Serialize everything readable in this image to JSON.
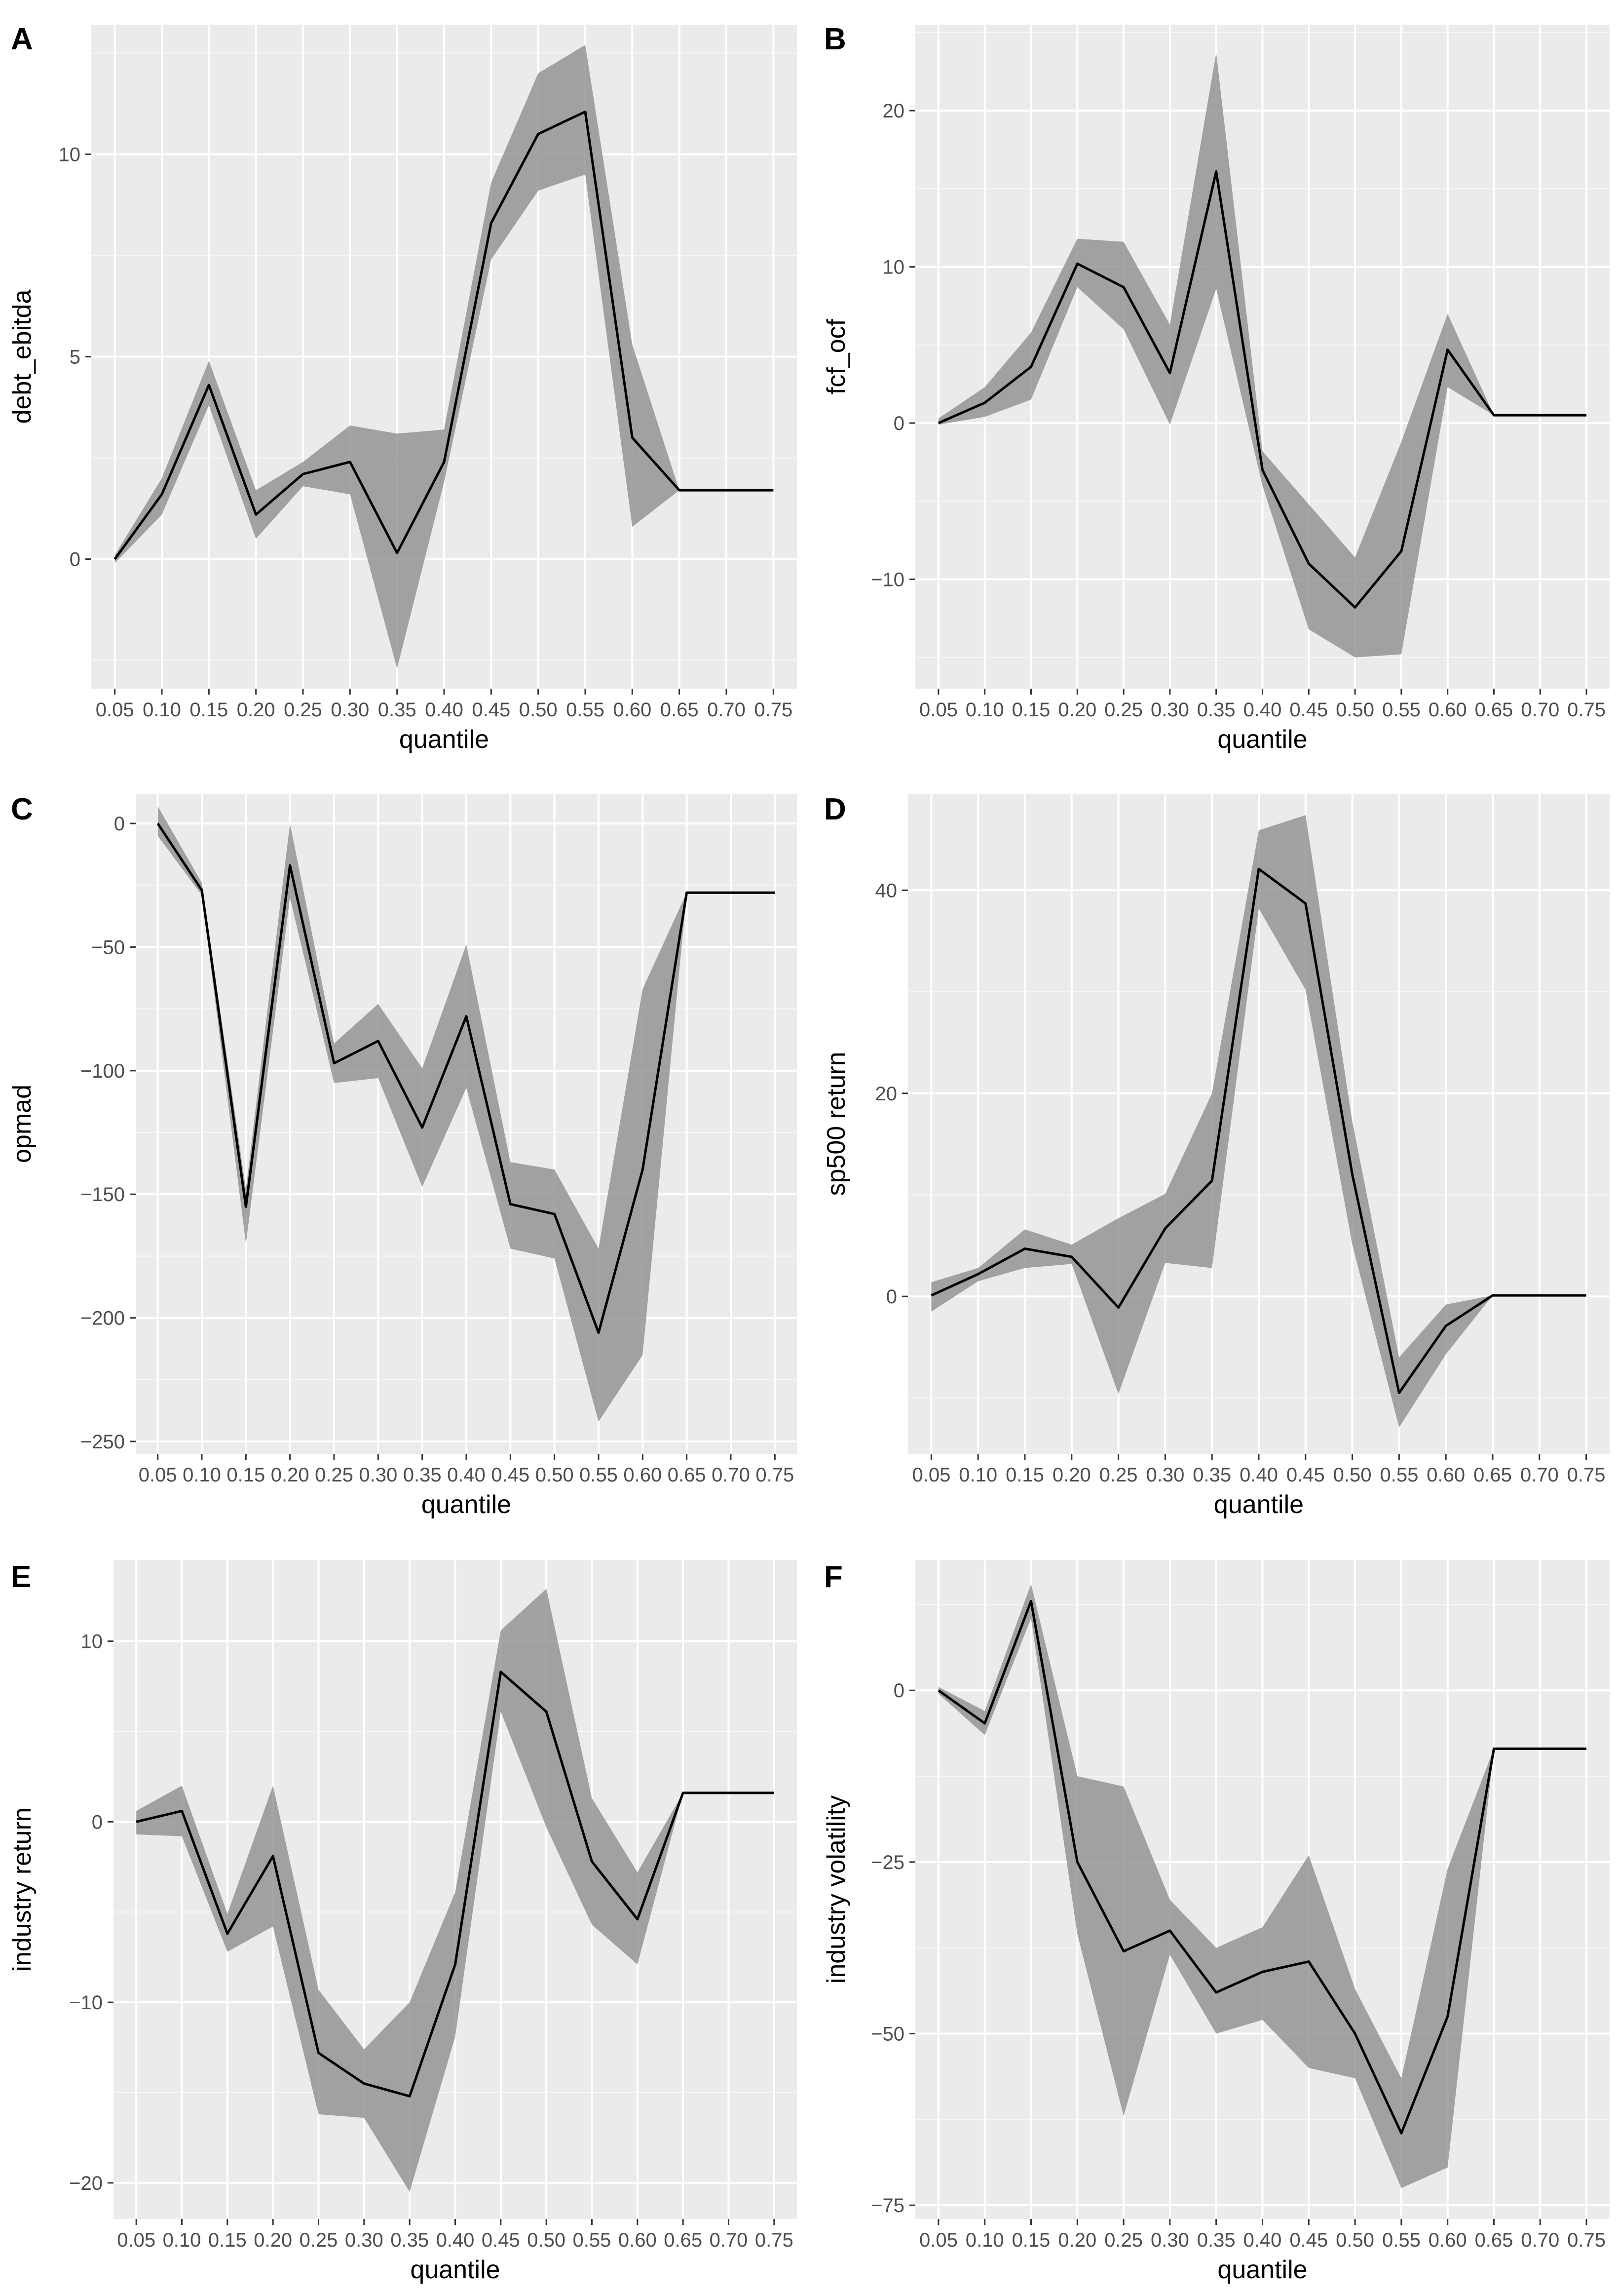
{
  "figure": {
    "panel_count": 6
  },
  "chart_data": [
    {
      "panel": "A",
      "type": "line",
      "xlabel": "quantile",
      "ylabel": "debt_ebitda",
      "x": [
        "0.05",
        "0.10",
        "0.15",
        "0.20",
        "0.25",
        "0.30",
        "0.35",
        "0.40",
        "0.45",
        "0.50",
        "0.55",
        "0.60",
        "0.65",
        "0.70",
        "0.75"
      ],
      "series": [
        {
          "name": "estimate",
          "values": [
            0.0,
            1.6,
            4.3,
            1.1,
            2.1,
            2.4,
            0.15,
            2.4,
            8.3,
            10.5,
            11.05,
            3.0,
            1.7,
            1.7,
            1.7
          ],
          "lower": [
            -0.1,
            1.1,
            3.8,
            0.5,
            1.8,
            1.6,
            -2.7,
            1.9,
            7.4,
            9.1,
            9.5,
            0.8,
            1.7,
            1.7,
            1.7
          ],
          "upper": [
            0.1,
            2.0,
            4.9,
            1.7,
            2.4,
            3.3,
            3.1,
            3.2,
            9.3,
            12.0,
            12.7,
            5.3,
            1.7,
            1.7,
            1.7
          ]
        }
      ],
      "ylim": [
        -3.2,
        13.2
      ],
      "yticks": [
        0,
        5,
        10
      ],
      "ytick_labels": [
        "0",
        "5",
        "10"
      ]
    },
    {
      "panel": "B",
      "type": "line",
      "xlabel": "quantile",
      "ylabel": "fcf_ocf",
      "x": [
        "0.05",
        "0.10",
        "0.15",
        "0.20",
        "0.25",
        "0.30",
        "0.35",
        "0.40",
        "0.45",
        "0.50",
        "0.55",
        "0.60",
        "0.65",
        "0.70",
        "0.75"
      ],
      "series": [
        {
          "name": "estimate",
          "values": [
            0.0,
            1.3,
            3.6,
            10.2,
            8.7,
            3.2,
            16.1,
            -3.0,
            -9.0,
            -11.8,
            -8.2,
            4.7,
            0.5,
            0.5,
            0.5
          ],
          "lower": [
            -0.1,
            0.4,
            1.5,
            8.7,
            6.0,
            -0.1,
            8.6,
            -4.0,
            -13.2,
            -15.0,
            -14.8,
            2.3,
            0.5,
            0.5,
            0.5
          ],
          "upper": [
            0.3,
            2.3,
            5.8,
            11.8,
            11.6,
            6.3,
            23.7,
            -1.8,
            -5.2,
            -8.6,
            -1.2,
            7.0,
            0.5,
            0.5,
            0.5
          ]
        }
      ],
      "ylim": [
        -17.0,
        25.5
      ],
      "yticks": [
        -10,
        0,
        10,
        20
      ],
      "ytick_labels": [
        "−10",
        "0",
        "10",
        "20"
      ]
    },
    {
      "panel": "C",
      "type": "line",
      "xlabel": "quantile",
      "ylabel": "opmad",
      "x": [
        "0.05",
        "0.10",
        "0.15",
        "0.20",
        "0.25",
        "0.30",
        "0.35",
        "0.40",
        "0.45",
        "0.50",
        "0.55",
        "0.60",
        "0.65",
        "0.70",
        "0.75"
      ],
      "series": [
        {
          "name": "estimate",
          "values": [
            0,
            -27,
            -155,
            -17,
            -97,
            -88,
            -123,
            -78,
            -154,
            -158,
            -206,
            -140,
            -28,
            -28,
            -28
          ],
          "lower": [
            -5,
            -29,
            -170,
            -30,
            -105,
            -103,
            -147,
            -107,
            -172,
            -176,
            -242,
            -215,
            -28,
            -28,
            -28
          ],
          "upper": [
            7,
            -24,
            -148,
            0,
            -89,
            -73,
            -99,
            -49,
            -137,
            -140,
            -172,
            -67,
            -28,
            -28,
            -28
          ]
        }
      ],
      "ylim": [
        -255,
        12
      ],
      "yticks": [
        -250,
        -200,
        -150,
        -100,
        -50,
        0
      ],
      "ytick_labels": [
        "−250",
        "−200",
        "−150",
        "−100",
        "−50",
        "0"
      ]
    },
    {
      "panel": "D",
      "type": "line",
      "xlabel": "quantile",
      "ylabel": "sp500 return",
      "x": [
        "0.05",
        "0.10",
        "0.15",
        "0.20",
        "0.25",
        "0.30",
        "0.35",
        "0.40",
        "0.45",
        "0.50",
        "0.55",
        "0.60",
        "0.65",
        "0.70",
        "0.75"
      ],
      "series": [
        {
          "name": "estimate",
          "values": [
            0.1,
            2.2,
            4.7,
            3.9,
            -1.1,
            6.7,
            11.4,
            42.1,
            38.7,
            12.0,
            -9.5,
            -2.9,
            0.1,
            0.1,
            0.1
          ],
          "lower": [
            -1.5,
            1.5,
            2.8,
            3.2,
            -9.6,
            3.3,
            2.8,
            38.2,
            30.2,
            5.1,
            -12.9,
            -5.7,
            0.1,
            0.1,
            0.1
          ],
          "upper": [
            1.4,
            2.8,
            6.6,
            5.1,
            7.7,
            10.1,
            20.0,
            45.9,
            47.4,
            17.2,
            -6.0,
            -0.8,
            0.1,
            0.1,
            0.1
          ]
        }
      ],
      "ylim": [
        -15.5,
        49.5
      ],
      "yticks": [
        0,
        20,
        40
      ],
      "ytick_labels": [
        "0",
        "20",
        "40"
      ]
    },
    {
      "panel": "E",
      "type": "line",
      "xlabel": "quantile",
      "ylabel": "industry return",
      "x": [
        "0.05",
        "0.10",
        "0.15",
        "0.20",
        "0.25",
        "0.30",
        "0.35",
        "0.40",
        "0.45",
        "0.50",
        "0.55",
        "0.60",
        "0.65",
        "0.70",
        "0.75"
      ],
      "series": [
        {
          "name": "estimate",
          "values": [
            0.0,
            0.6,
            -6.2,
            -1.9,
            -12.8,
            -14.5,
            -15.2,
            -7.9,
            8.3,
            6.1,
            -2.2,
            -5.4,
            1.6,
            1.6,
            1.6
          ],
          "lower": [
            -0.7,
            -0.8,
            -7.2,
            -5.8,
            -16.2,
            -16.4,
            -20.5,
            -11.9,
            6.1,
            -0.3,
            -5.7,
            -7.9,
            1.6,
            1.6,
            1.6
          ],
          "upper": [
            0.6,
            2.0,
            -5.1,
            2.0,
            -9.3,
            -12.6,
            -10.0,
            -3.9,
            10.6,
            12.9,
            1.3,
            -2.8,
            1.6,
            1.6,
            1.6
          ]
        }
      ],
      "ylim": [
        -22.0,
        14.5
      ],
      "yticks": [
        -20,
        -10,
        0,
        10
      ],
      "ytick_labels": [
        "−20",
        "−10",
        "0",
        "10"
      ]
    },
    {
      "panel": "F",
      "type": "line",
      "xlabel": "quantile",
      "ylabel": "industry volatility",
      "x": [
        "0.05",
        "0.10",
        "0.15",
        "0.20",
        "0.25",
        "0.30",
        "0.35",
        "0.40",
        "0.45",
        "0.50",
        "0.55",
        "0.60",
        "0.65",
        "0.70",
        "0.75"
      ],
      "series": [
        {
          "name": "estimate",
          "values": [
            0,
            -4.8,
            13.0,
            -25.0,
            -38.0,
            -35.0,
            -44.0,
            -41.0,
            -39.5,
            -50.0,
            -64.5,
            -47.5,
            -8.5,
            -8.5,
            -8.5
          ],
          "lower": [
            -0.5,
            -6.5,
            10.5,
            -35.5,
            -62.0,
            -38.5,
            -50.0,
            -48.0,
            -55.0,
            -56.5,
            -72.5,
            -69.5,
            -8.5,
            -8.5,
            -8.5
          ],
          "upper": [
            0.5,
            -3.0,
            15.5,
            -12.5,
            -14.0,
            -30.5,
            -37.5,
            -34.5,
            -24.0,
            -43.5,
            -56.5,
            -26.0,
            -8.5,
            -8.5,
            -8.5
          ]
        }
      ],
      "ylim": [
        -77.0,
        19.0
      ],
      "yticks": [
        -75,
        -50,
        -25,
        0
      ],
      "ytick_labels": [
        "−75",
        "−50",
        "−25",
        "0"
      ]
    }
  ]
}
